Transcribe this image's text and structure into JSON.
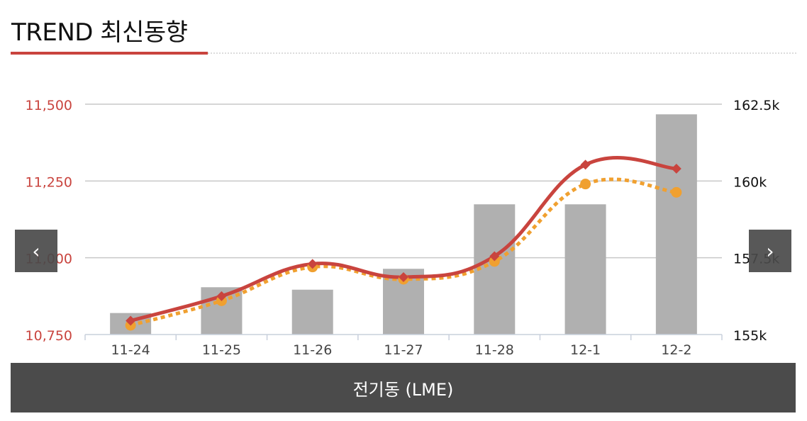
{
  "header": {
    "title": "TREND 최신동향"
  },
  "navigation": {
    "prev_icon": "chevron-left-icon",
    "next_icon": "chevron-right-icon",
    "prev_glyph": "‹",
    "next_glyph": "›"
  },
  "caption": {
    "label": "전기동 (LME)"
  },
  "colors": {
    "accent": "#c9443e",
    "orange": "#f0a030",
    "bar": "#b0b0b0",
    "grid": "#c8c8c8",
    "caption_bg": "#4b4b4b"
  },
  "chart_data": {
    "type": "bar+line",
    "categories": [
      "11-24",
      "11-25",
      "11-26",
      "11-27",
      "11-28",
      "12-1",
      "12-2"
    ],
    "left_axis": {
      "ticks": [
        10750,
        11000,
        11250,
        11500
      ],
      "tick_labels": [
        "10,750",
        "11,000",
        "11,250",
        "11,500"
      ],
      "range": [
        10750,
        11500
      ],
      "color": "#c9443e"
    },
    "right_axis": {
      "ticks": [
        155000,
        157500,
        160000,
        162500
      ],
      "tick_labels": [
        "155k",
        "157.5k",
        "160k",
        "162.5k"
      ],
      "range": [
        155000,
        162500
      ]
    },
    "series": [
      {
        "type": "bar",
        "axis": "right",
        "values": [
          155700,
          156540,
          156460,
          157140,
          159240,
          159240,
          162170
        ]
      },
      {
        "type": "line",
        "axis": "left",
        "style": "solid",
        "marker": "diamond",
        "color": "#c9443e",
        "values": [
          10795,
          10875,
          10980,
          10937,
          11005,
          11303,
          11290
        ]
      },
      {
        "type": "line",
        "axis": "left",
        "style": "dotted",
        "marker": "circle",
        "color": "#f0a030",
        "values": [
          10780,
          10860,
          10970,
          10930,
          10988,
          11240,
          11213
        ]
      }
    ],
    "grid": true,
    "legend": "none"
  }
}
